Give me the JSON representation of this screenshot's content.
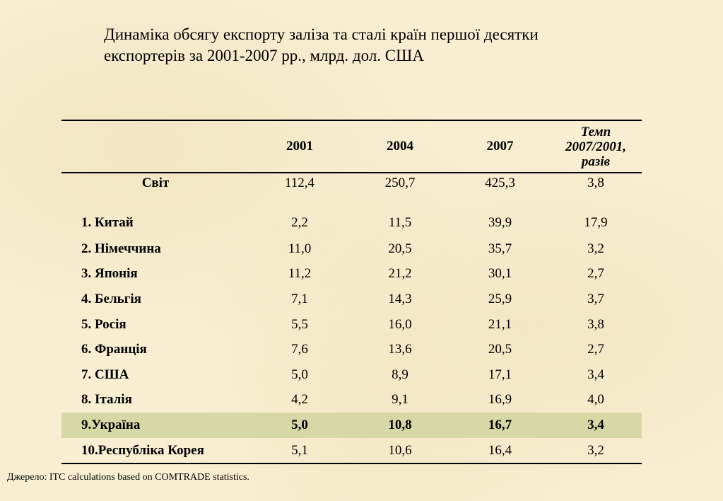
{
  "title": "Динаміка обсягу експорту заліза та сталі країн першої десятки експортерів за 2001-2007 рр., млрд. дол. США",
  "table": {
    "columns": [
      "",
      "2001",
      "2004",
      "2007",
      "Темп 2007/2001, разів"
    ],
    "rows": [
      {
        "name": "Світ",
        "v2001": "112,4",
        "v2004": "250,7",
        "v2007": "425,3",
        "rate": "3,8"
      },
      {
        "name": "1. Китай",
        "v2001": "2,2",
        "v2004": "11,5",
        "v2007": "39,9",
        "rate": "17,9"
      },
      {
        "name": "2. Німеччина",
        "v2001": "11,0",
        "v2004": "20,5",
        "v2007": "35,7",
        "rate": "3,2"
      },
      {
        "name": "3. Японія",
        "v2001": "11,2",
        "v2004": "21,2",
        "v2007": "30,1",
        "rate": "2,7"
      },
      {
        "name": "4. Бельгія",
        "v2001": "7,1",
        "v2004": "14,3",
        "v2007": "25,9",
        "rate": "3,7"
      },
      {
        "name": "5. Росія",
        "v2001": "5,5",
        "v2004": "16,0",
        "v2007": "21,1",
        "rate": "3,8"
      },
      {
        "name": "6. Франція",
        "v2001": "7,6",
        "v2004": "13,6",
        "v2007": "20,5",
        "rate": "2,7"
      },
      {
        "name": "7. США",
        "v2001": "5,0",
        "v2004": "8,9",
        "v2007": "17,1",
        "rate": "3,4"
      },
      {
        "name": "8. Італія",
        "v2001": "4,2",
        "v2004": "9,1",
        "v2007": "16,9",
        "rate": "4,0"
      },
      {
        "name": "9.Україна",
        "v2001": "5,0",
        "v2004": "10,8",
        "v2007": "16,7",
        "rate": "3,4"
      },
      {
        "name": "10.Республіка Корея",
        "v2001": "5,1",
        "v2004": "10,6",
        "v2007": "16,4",
        "rate": "3,2"
      }
    ],
    "highlight_color": "#d6d9a6"
  },
  "source": "Джерело: ITC calculations based on COMTRADE statistics."
}
